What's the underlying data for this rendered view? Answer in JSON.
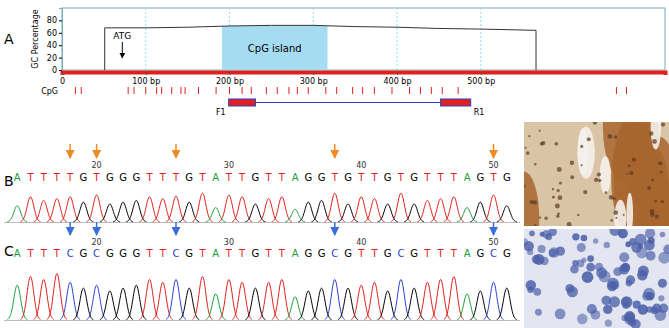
{
  "chart_data": [
    {
      "panel": "A",
      "type": "line",
      "y_label": "GC Percentage",
      "x": [
        51,
        51,
        100,
        150,
        200,
        250,
        300,
        350,
        400,
        450,
        500,
        566,
        566
      ],
      "values": [
        0,
        68,
        68,
        69,
        71,
        72,
        72,
        70,
        69,
        67,
        66,
        64,
        0
      ],
      "color": "#333333",
      "xlim": [
        0,
        720
      ],
      "ylim": [
        0,
        100
      ],
      "xticks": [
        0,
        {
          "value": 100,
          "label": "100 bp"
        },
        {
          "value": 200,
          "label": "200 bp"
        },
        {
          "value": 300,
          "label": "300 bp"
        },
        {
          "value": 400,
          "label": "400 bp"
        },
        {
          "value": 500,
          "label": "500 bp"
        }
      ],
      "yticks": [
        0,
        20,
        40,
        60,
        80
      ],
      "grid": true,
      "markers": [
        {
          "label": "ATG",
          "x": 72
        }
      ],
      "regions": [
        {
          "label": "CpG island",
          "start": 191,
          "end": 317
        }
      ],
      "cpg_sites": {
        "label": "CpG",
        "positions": [
          16,
          23,
          79,
          86,
          100,
          113,
          119,
          131,
          142,
          147,
          163,
          184,
          200,
          215,
          226,
          244,
          257,
          271,
          281,
          294,
          315,
          328,
          347,
          359,
          373,
          394,
          415,
          428,
          441,
          454,
          473,
          662,
          674
        ]
      },
      "primers": [
        {
          "label": "F1",
          "start": 199,
          "end": 231
        },
        {
          "label": "R1",
          "start": 452,
          "end": 488
        }
      ]
    },
    {
      "panel": "B",
      "type": "chromatogram",
      "x": [
        14,
        15,
        16,
        17,
        18,
        19,
        20,
        21,
        22,
        23,
        24,
        25,
        26,
        27,
        28,
        29,
        30,
        31,
        32,
        33,
        34,
        35,
        36,
        37,
        38,
        39,
        40,
        41,
        42,
        43,
        44,
        45,
        46,
        47,
        48,
        49,
        50,
        51
      ],
      "bases": [
        "A",
        "T",
        "T",
        "T",
        "T",
        "G",
        "T",
        "G",
        "G",
        "G",
        "T",
        "T",
        "T",
        "G",
        "T",
        "A",
        "T",
        "T",
        "G",
        "T",
        "T",
        "A",
        "G",
        "G",
        "T",
        "G",
        "T",
        "T",
        "G",
        "T",
        "G",
        "T",
        "T",
        "T",
        "A",
        "G",
        "T",
        "G"
      ],
      "peaks": [
        45,
        70,
        60,
        65,
        70,
        55,
        75,
        50,
        55,
        60,
        70,
        65,
        72,
        55,
        80,
        40,
        75,
        70,
        50,
        65,
        70,
        35,
        55,
        60,
        80,
        50,
        70,
        65,
        50,
        80,
        50,
        60,
        65,
        70,
        40,
        55,
        75,
        45
      ],
      "arrows": [
        18,
        20,
        26,
        38,
        50
      ],
      "xlim": [
        13,
        52
      ],
      "ylim": [
        0,
        100
      ],
      "xticks": [
        20,
        30,
        40,
        50
      ],
      "tick_labels": "x"
    },
    {
      "panel": "C",
      "type": "chromatogram",
      "x": [
        14,
        15,
        16,
        17,
        18,
        19,
        20,
        21,
        22,
        23,
        24,
        25,
        26,
        27,
        28,
        29,
        30,
        31,
        32,
        33,
        34,
        35,
        36,
        37,
        38,
        39,
        40,
        41,
        42,
        43,
        44,
        45,
        46,
        47,
        48,
        49,
        50,
        51
      ],
      "bases": [
        "A",
        "T",
        "T",
        "T",
        "C",
        "G",
        "C",
        "G",
        "G",
        "G",
        "T",
        "T",
        "C",
        "G",
        "T",
        "A",
        "T",
        "T",
        "G",
        "T",
        "T",
        "A",
        "G",
        "G",
        "C",
        "G",
        "T",
        "T",
        "G",
        "C",
        "G",
        "T",
        "T",
        "T",
        "A",
        "G",
        "C",
        "G"
      ],
      "peaks": [
        60,
        75,
        70,
        80,
        65,
        55,
        60,
        50,
        55,
        60,
        70,
        65,
        70,
        55,
        75,
        45,
        70,
        65,
        55,
        65,
        70,
        40,
        50,
        55,
        70,
        55,
        60,
        65,
        50,
        70,
        55,
        65,
        70,
        75,
        45,
        50,
        65,
        55
      ],
      "arrows": [
        18,
        20,
        26,
        38,
        50
      ],
      "xlim": [
        13,
        52
      ],
      "ylim": [
        0,
        100
      ],
      "xticks": [
        20,
        30,
        40,
        50
      ],
      "tick_labels": "x"
    }
  ]
}
